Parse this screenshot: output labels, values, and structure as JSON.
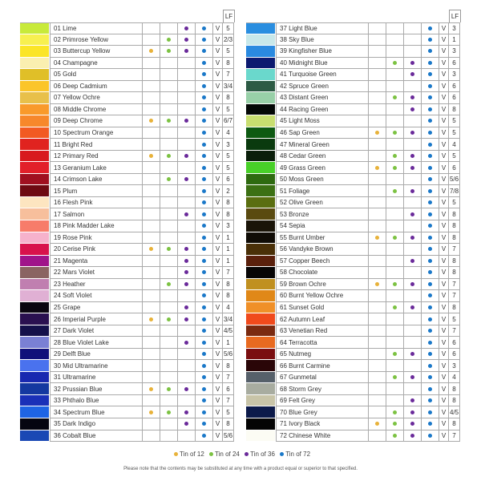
{
  "header": {
    "lf_label": "LF",
    "v_label": "V"
  },
  "tin_colors": {
    "12": "#e8b23a",
    "24": "#7cc242",
    "36": "#6a2a9a",
    "72": "#1a78c8"
  },
  "legend": [
    {
      "tin": "12",
      "label": "Tin of 12"
    },
    {
      "tin": "24",
      "label": "Tin of 24"
    },
    {
      "tin": "36",
      "label": "Tin of 36"
    },
    {
      "tin": "72",
      "label": "Tin of 72"
    }
  ],
  "note": "Please note that the contents may be substituted at any time with a product equal or superior to that specified.",
  "pencils": [
    {
      "name": "01 Lime",
      "color": "#c8ea3a",
      "tins": [
        "36",
        "72"
      ],
      "lf": "5"
    },
    {
      "name": "02 Primrose Yellow",
      "color": "#f7f050",
      "tins": [
        "24",
        "36",
        "72"
      ],
      "lf": "2/3"
    },
    {
      "name": "03 Buttercup Yellow",
      "color": "#fbe527",
      "tins": [
        "12",
        "24",
        "36",
        "72"
      ],
      "lf": "5"
    },
    {
      "name": "04 Champagne",
      "color": "#faefb0",
      "tins": [
        "72"
      ],
      "lf": "8"
    },
    {
      "name": "05 Gold",
      "color": "#e0bf28",
      "tins": [
        "72"
      ],
      "lf": "7"
    },
    {
      "name": "06 Deep Cadmium",
      "color": "#fbc52a",
      "tins": [
        "72"
      ],
      "lf": "3/4"
    },
    {
      "name": "07 Yellow Ochre",
      "color": "#e8c04a",
      "tins": [
        "72"
      ],
      "lf": "8"
    },
    {
      "name": "08 Middle Chrome",
      "color": "#f99a2b",
      "tins": [
        "72"
      ],
      "lf": "5"
    },
    {
      "name": "09 Deep Chrome",
      "color": "#f7882b",
      "tins": [
        "12",
        "24",
        "36",
        "72"
      ],
      "lf": "6/7"
    },
    {
      "name": "10 Spectrum Orange",
      "color": "#f25a22",
      "tins": [
        "72"
      ],
      "lf": "4"
    },
    {
      "name": "11 Bright Red",
      "color": "#e0231f",
      "tins": [
        "72"
      ],
      "lf": "3"
    },
    {
      "name": "12 Primary Red",
      "color": "#d8191e",
      "tins": [
        "12",
        "24",
        "36",
        "72"
      ],
      "lf": "5"
    },
    {
      "name": "13 Geranium Lake",
      "color": "#e2202a",
      "tins": [
        "72"
      ],
      "lf": "5"
    },
    {
      "name": "14 Crimson Lake",
      "color": "#a01020",
      "tins": [
        "24",
        "36",
        "72"
      ],
      "lf": "6"
    },
    {
      "name": "15 Plum",
      "color": "#6e0a12",
      "tins": [
        "72"
      ],
      "lf": "2"
    },
    {
      "name": "16 Flesh Pink",
      "color": "#fde5c0",
      "tins": [
        "72"
      ],
      "lf": "8"
    },
    {
      "name": "17 Salmon",
      "color": "#f7bf9c",
      "tins": [
        "36",
        "72"
      ],
      "lf": "8"
    },
    {
      "name": "18 Pink Madder Lake",
      "color": "#f77c6a",
      "tins": [
        "72"
      ],
      "lf": "3"
    },
    {
      "name": "19 Rose Pink",
      "color": "#f6b2cc",
      "tins": [
        "72"
      ],
      "lf": "1"
    },
    {
      "name": "20 Cerise Pink",
      "color": "#d8124c",
      "tins": [
        "12",
        "24",
        "36",
        "72"
      ],
      "lf": "1"
    },
    {
      "name": "21 Magenta",
      "color": "#a0148a",
      "tins": [
        "36",
        "72"
      ],
      "lf": "1"
    },
    {
      "name": "22 Mars Violet",
      "color": "#8a6462",
      "tins": [
        "36",
        "72"
      ],
      "lf": "7"
    },
    {
      "name": "23 Heather",
      "color": "#c07fb0",
      "tins": [
        "24",
        "36",
        "72"
      ],
      "lf": "8"
    },
    {
      "name": "24 Soft Violet",
      "color": "#e0b0d4",
      "tins": [
        "72"
      ],
      "lf": "8"
    },
    {
      "name": "25 Grape",
      "color": "#0a0510",
      "tins": [
        "36",
        "72"
      ],
      "lf": "4"
    },
    {
      "name": "26 Imperial Purple",
      "color": "#2a1050",
      "tins": [
        "12",
        "24",
        "36",
        "72"
      ],
      "lf": "3/4"
    },
    {
      "name": "27 Dark Violet",
      "color": "#14104a",
      "tins": [
        "72"
      ],
      "lf": "4/5"
    },
    {
      "name": "28 Blue Violet Lake",
      "color": "#7a80d4",
      "tins": [
        "36",
        "72"
      ],
      "lf": "1"
    },
    {
      "name": "29 Delft Blue",
      "color": "#10107a",
      "tins": [
        "72"
      ],
      "lf": "5/6"
    },
    {
      "name": "30 Mid Ultramarine",
      "color": "#4a72ee",
      "tins": [
        "72"
      ],
      "lf": "8"
    },
    {
      "name": "31 Ultramarine",
      "color": "#1828b0",
      "tins": [
        "72"
      ],
      "lf": "7"
    },
    {
      "name": "32 Prussian Blue",
      "color": "#1438a0",
      "tins": [
        "12",
        "24",
        "36",
        "72"
      ],
      "lf": "6"
    },
    {
      "name": "33 Phthalo Blue",
      "color": "#1a30b8",
      "tins": [
        "72"
      ],
      "lf": "7"
    },
    {
      "name": "34 Spectrum Blue",
      "color": "#1e64e4",
      "tins": [
        "12",
        "24",
        "36",
        "72"
      ],
      "lf": "5"
    },
    {
      "name": "35 Dark Indigo",
      "color": "#050510",
      "tins": [
        "36",
        "72"
      ],
      "lf": "8"
    },
    {
      "name": "36 Cobalt Blue",
      "color": "#1a48b4",
      "tins": [
        "72"
      ],
      "lf": "5/6"
    },
    {
      "name": "37 Light Blue",
      "color": "#2a8ee0",
      "tins": [
        "72"
      ],
      "lf": "3"
    },
    {
      "name": "38 Sky Blue",
      "color": "#c8e8ea",
      "tins": [
        "72"
      ],
      "lf": "1"
    },
    {
      "name": "39 Kingfisher Blue",
      "color": "#2a8ae0",
      "tins": [
        "72"
      ],
      "lf": "3"
    },
    {
      "name": "40 Midnight Blue",
      "color": "#0c1a70",
      "tins": [
        "24",
        "36",
        "72"
      ],
      "lf": "6"
    },
    {
      "name": "41 Turquoise Green",
      "color": "#6ad8cc",
      "tins": [
        "36",
        "72"
      ],
      "lf": "3"
    },
    {
      "name": "42 Spruce Green",
      "color": "#2c5a44",
      "tins": [
        "72"
      ],
      "lf": "6"
    },
    {
      "name": "43 Distant Green",
      "color": "#98d0a8",
      "tins": [
        "24",
        "36",
        "72"
      ],
      "lf": "6"
    },
    {
      "name": "44 Racing Green",
      "color": "#040806",
      "tins": [
        "36",
        "72"
      ],
      "lf": "8"
    },
    {
      "name": "45 Light Moss",
      "color": "#c8de70",
      "tins": [
        "72"
      ],
      "lf": "5"
    },
    {
      "name": "46 Sap Green",
      "color": "#0e5a12",
      "tins": [
        "12",
        "24",
        "36",
        "72"
      ],
      "lf": "5"
    },
    {
      "name": "47 Mineral Green",
      "color": "#0a3a0e",
      "tins": [
        "72"
      ],
      "lf": "4"
    },
    {
      "name": "48 Cedar Green",
      "color": "#0a1e0a",
      "tins": [
        "24",
        "36",
        "72"
      ],
      "lf": "5"
    },
    {
      "name": "49 Grass Green",
      "color": "#48d028",
      "tins": [
        "12",
        "24",
        "36",
        "72"
      ],
      "lf": "6"
    },
    {
      "name": "50 Moss Green",
      "color": "#2e6a10",
      "tins": [
        "72"
      ],
      "lf": "5/6"
    },
    {
      "name": "51 Foliage",
      "color": "#3c7014",
      "tins": [
        "24",
        "36",
        "72"
      ],
      "lf": "7/8"
    },
    {
      "name": "52 Olive Green",
      "color": "#5a6e10",
      "tins": [
        "72"
      ],
      "lf": "5"
    },
    {
      "name": "53 Bronze",
      "color": "#5a4a10",
      "tins": [
        "36",
        "72"
      ],
      "lf": "8"
    },
    {
      "name": "54 Sepia",
      "color": "#1a1408",
      "tins": [
        "72"
      ],
      "lf": "8"
    },
    {
      "name": "55 Burnt Umber",
      "color": "#100c06",
      "tins": [
        "12",
        "24",
        "36",
        "72"
      ],
      "lf": "8"
    },
    {
      "name": "56 Vandyke Brown",
      "color": "#4a3008",
      "tins": [
        "72"
      ],
      "lf": "7"
    },
    {
      "name": "57 Copper Beech",
      "color": "#5a200c",
      "tins": [
        "36",
        "72"
      ],
      "lf": "8"
    },
    {
      "name": "58 Chocolate",
      "color": "#080606",
      "tins": [
        "72"
      ],
      "lf": "8"
    },
    {
      "name": "59 Brown Ochre",
      "color": "#c09020",
      "tins": [
        "12",
        "24",
        "36",
        "72"
      ],
      "lf": "7"
    },
    {
      "name": "60 Burnt Yellow Ochre",
      "color": "#e08818",
      "tins": [
        "72"
      ],
      "lf": "7"
    },
    {
      "name": "61 Sunset Gold",
      "color": "#f09028",
      "tins": [
        "24",
        "36",
        "72"
      ],
      "lf": "8"
    },
    {
      "name": "62 Autumn Leaf",
      "color": "#f04a1c",
      "tins": [
        "72"
      ],
      "lf": "5"
    },
    {
      "name": "63 Venetian Red",
      "color": "#7a2a10",
      "tins": [
        "72"
      ],
      "lf": "7"
    },
    {
      "name": "64 Terracotta",
      "color": "#e86a20",
      "tins": [
        "72"
      ],
      "lf": "6"
    },
    {
      "name": "65 Nutmeg",
      "color": "#7a0e10",
      "tins": [
        "24",
        "36",
        "72"
      ],
      "lf": "6"
    },
    {
      "name": "66 Burnt Carmine",
      "color": "#2a0608",
      "tins": [
        "72"
      ],
      "lf": "3"
    },
    {
      "name": "67 Gunmetal",
      "color": "#56606a",
      "tins": [
        "24",
        "36",
        "72"
      ],
      "lf": "4"
    },
    {
      "name": "68 Storm Grey",
      "color": "#a8aca0",
      "tins": [
        "72"
      ],
      "lf": "8"
    },
    {
      "name": "69 Felt Grey",
      "color": "#c8c4a8",
      "tins": [
        "36",
        "72"
      ],
      "lf": "8"
    },
    {
      "name": "70 Blue Grey",
      "color": "#0c1a4a",
      "tins": [
        "24",
        "36",
        "72"
      ],
      "lf": "4/5"
    },
    {
      "name": "71 Ivory Black",
      "color": "#040404",
      "tins": [
        "12",
        "24",
        "36",
        "72"
      ],
      "lf": "8"
    },
    {
      "name": "72 Chinese White",
      "color": "#fcfcf4",
      "tins": [
        "24",
        "36",
        "72"
      ],
      "lf": "7"
    }
  ]
}
